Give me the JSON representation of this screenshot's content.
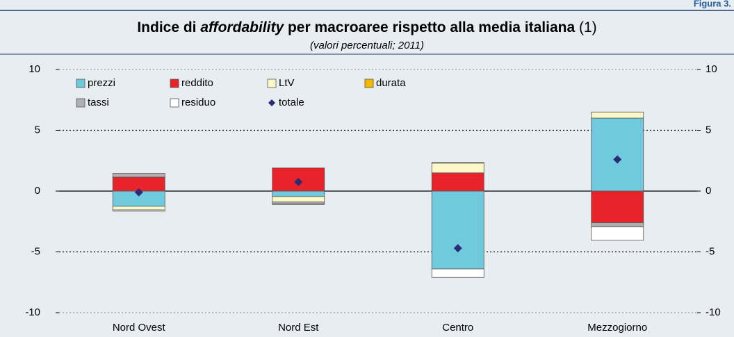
{
  "figure_label": "Figura 3.",
  "chart_data": {
    "type": "bar",
    "stacked": true,
    "title": [
      {
        "text": "Indice di ",
        "style": "bold"
      },
      {
        "text": "affordability",
        "style": "bold-italic"
      },
      {
        "text": " per macroaree rispetto alla media italiana ",
        "style": "bold"
      },
      {
        "text": "(1)",
        "style": "normal"
      }
    ],
    "subtitle": "(valori percentuali; 2011)",
    "categories": [
      "Nord Ovest",
      "Nord Est",
      "Centro",
      "Mezzogiorno"
    ],
    "series": [
      {
        "name": "prezzi",
        "color": "#6ecadc",
        "values": [
          -1.25,
          -0.45,
          -6.4,
          6.0
        ]
      },
      {
        "name": "reddito",
        "color": "#e8232a",
        "values": [
          1.15,
          1.9,
          1.5,
          -2.6
        ]
      },
      {
        "name": "LtV",
        "color": "#fdf8c8",
        "values": [
          -0.3,
          -0.45,
          0.8,
          0.5
        ]
      },
      {
        "name": "durata",
        "color": "#f5b800",
        "values": [
          0,
          0,
          0.05,
          0
        ]
      },
      {
        "name": "tassi",
        "color": "#b0b0b0",
        "values": [
          0.3,
          -0.15,
          0,
          -0.35
        ]
      },
      {
        "name": "residuo",
        "color": "#ffffff",
        "values": [
          -0.1,
          -0.05,
          -0.7,
          -1.1
        ]
      },
      {
        "name": "totale",
        "color": "#2b2b7a",
        "type": "scatter",
        "values": [
          -0.1,
          0.75,
          -4.7,
          2.6
        ]
      }
    ],
    "ylim": [
      -10,
      10
    ],
    "yticks": [
      -10,
      -5,
      0,
      5,
      10
    ],
    "grid": true,
    "legend": "top-left"
  }
}
